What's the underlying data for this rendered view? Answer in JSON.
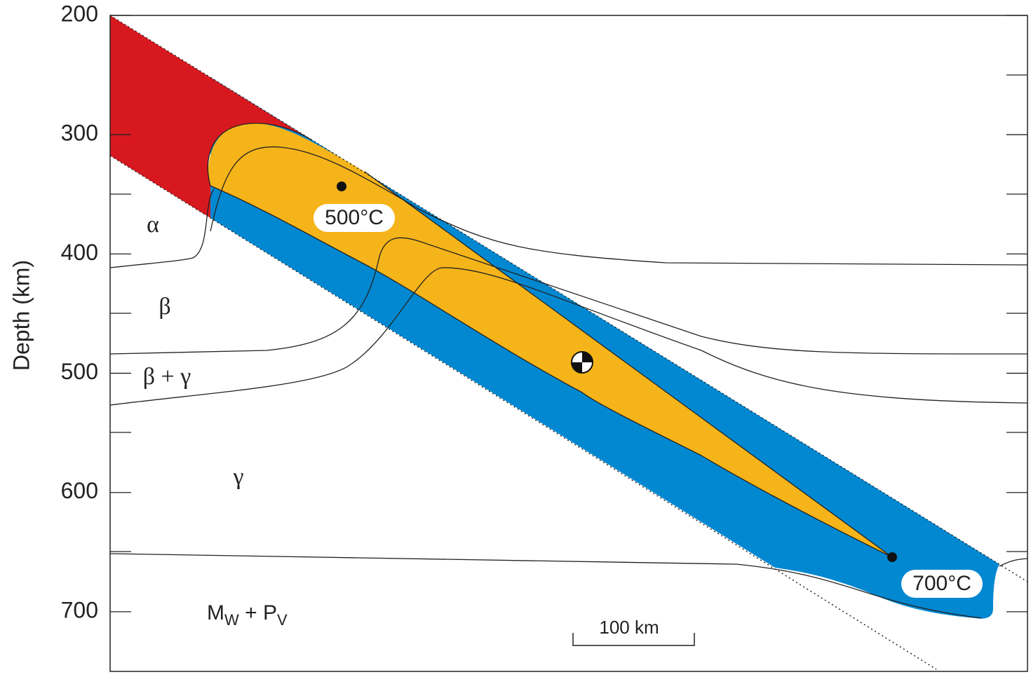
{
  "axis": {
    "label": "Depth (km)",
    "range": [
      200,
      750
    ],
    "ticks": [
      200,
      300,
      400,
      500,
      600,
      700
    ]
  },
  "phases": [
    "α",
    "β",
    "β + γ",
    "γ"
  ],
  "lower_mantle": [
    "M",
    "W",
    " + P",
    "V"
  ],
  "temperatures": [
    "500°C",
    "700°C"
  ],
  "scale_bar": "100 km"
}
